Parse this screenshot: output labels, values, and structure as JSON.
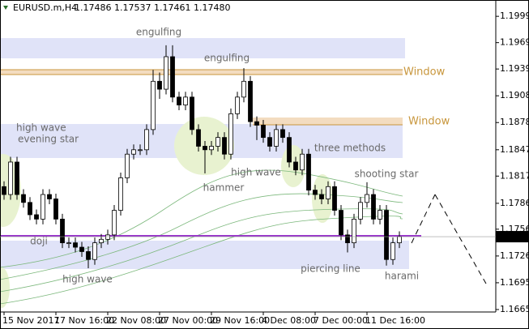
{
  "header": {
    "symbol": "EURUSD.m,H4",
    "quote": "1.17486 1.17537 1.17461 1.17480"
  },
  "chart_data": {
    "type": "candlestick",
    "open": [
      1.1805,
      1.1796,
      1.1833,
      1.1796,
      1.1787,
      1.1773,
      1.1768,
      1.1796,
      1.1791,
      1.1768,
      1.1741,
      1.1741,
      1.1736,
      1.1731,
      1.1722,
      1.1741,
      1.1745,
      1.175,
      1.1778,
      1.1815,
      1.1842,
      1.1847,
      1.1847,
      1.187,
      1.1925,
      1.1916,
      1.1953,
      1.1907,
      1.1898,
      1.1907,
      1.187,
      1.1851,
      1.1847,
      1.1851,
      1.1861,
      1.1842,
      1.1888,
      1.1907,
      1.1925,
      1.1879,
      1.1875,
      1.1861,
      1.1851,
      1.187,
      1.1861,
      1.1833,
      1.1824,
      1.1842,
      1.1801,
      1.1796,
      1.1791,
      1.1805,
      1.1778,
      1.175,
      1.1741,
      1.1768,
      1.1787,
      1.1796,
      1.1768,
      1.1778,
      1.1722,
      1.1741
    ],
    "high": [
      1.1811,
      1.1839,
      1.1839,
      1.1802,
      1.1793,
      1.1779,
      1.1802,
      1.1802,
      1.1797,
      1.1774,
      1.1747,
      1.1747,
      1.1742,
      1.1737,
      1.1747,
      1.1751,
      1.1756,
      1.1784,
      1.1821,
      1.1848,
      1.1853,
      1.1853,
      1.1876,
      1.1938,
      1.1935,
      1.1966,
      1.1966,
      1.1913,
      1.1913,
      1.1913,
      1.1876,
      1.1857,
      1.1857,
      1.1867,
      1.1867,
      1.1894,
      1.1913,
      1.194,
      1.1931,
      1.1885,
      1.1881,
      1.1867,
      1.1876,
      1.1876,
      1.1867,
      1.1839,
      1.1848,
      1.1848,
      1.1807,
      1.1802,
      1.1811,
      1.1811,
      1.1784,
      1.1756,
      1.1774,
      1.1793,
      1.181,
      1.1802,
      1.1784,
      1.1784,
      1.1747,
      1.1754
    ],
    "low": [
      1.179,
      1.179,
      1.179,
      1.1781,
      1.1767,
      1.1762,
      1.1762,
      1.1785,
      1.1762,
      1.1735,
      1.1735,
      1.173,
      1.1725,
      1.1712,
      1.1716,
      1.1735,
      1.1739,
      1.1744,
      1.1772,
      1.1809,
      1.1836,
      1.1841,
      1.1841,
      1.1864,
      1.1905,
      1.191,
      1.1901,
      1.1892,
      1.1892,
      1.1864,
      1.1845,
      1.182,
      1.1841,
      1.1845,
      1.1836,
      1.1836,
      1.1882,
      1.1901,
      1.1873,
      1.1858,
      1.1855,
      1.1845,
      1.1845,
      1.1855,
      1.1827,
      1.1818,
      1.1818,
      1.1795,
      1.179,
      1.1785,
      1.1785,
      1.1772,
      1.1744,
      1.173,
      1.1735,
      1.1762,
      1.1781,
      1.1762,
      1.1762,
      1.1715,
      1.1716,
      1.1735
    ],
    "close": [
      1.1796,
      1.1833,
      1.1796,
      1.1787,
      1.1773,
      1.1768,
      1.1796,
      1.1791,
      1.1768,
      1.1741,
      1.1741,
      1.1736,
      1.1731,
      1.1722,
      1.1741,
      1.1745,
      1.175,
      1.1778,
      1.1815,
      1.1842,
      1.1847,
      1.1847,
      1.187,
      1.1925,
      1.1916,
      1.1953,
      1.1907,
      1.1898,
      1.1907,
      1.187,
      1.1851,
      1.1847,
      1.1851,
      1.1861,
      1.1842,
      1.1888,
      1.1907,
      1.1925,
      1.1879,
      1.1875,
      1.1861,
      1.1851,
      1.187,
      1.1861,
      1.1833,
      1.1824,
      1.1842,
      1.1801,
      1.1796,
      1.1791,
      1.1805,
      1.1778,
      1.175,
      1.1741,
      1.1768,
      1.1787,
      1.1796,
      1.1768,
      1.1778,
      1.1722,
      1.1741,
      1.1748
    ],
    "up_color": "#ffffff",
    "down_color": "#000000",
    "ylim": [
      1.16622,
      1.20176
    ],
    "yticks": [
      {
        "value": 1.1999,
        "label": "1.19990"
      },
      {
        "value": 1.1969,
        "label": "1.19690"
      },
      {
        "value": 1.1939,
        "label": "1.19390"
      },
      1.19085,
      {
        "value": 1.1878,
        "label": "1.18780"
      },
      {
        "value": 1.1847,
        "label": "1.18470"
      },
      {
        "value": 1.1817,
        "label": "1.18170"
      },
      {
        "value": 1.1786,
        "label": "1.17860"
      },
      1.17565,
      {
        "value": 1.1726,
        "label": "1.17260"
      },
      1.16955,
      {
        "value": 1.1665,
        "label": "1.16650"
      }
    ],
    "xticks": [
      {
        "value": 0,
        "label": "15 Nov 2017"
      },
      {
        "value": 8,
        "label": "17 Nov 16:00"
      },
      {
        "value": 16,
        "label": "22 Nov 08:00"
      },
      {
        "value": 24,
        "label": "27 Nov 00:00"
      },
      {
        "value": 32,
        "label": "29 Nov 16:00"
      },
      {
        "value": 40,
        "label": "4 Dec 08:00"
      },
      {
        "value": 48,
        "label": "7 Dec 00:00"
      },
      {
        "value": 56,
        "label": "11 Dec 16:00"
      }
    ],
    "last_price": {
      "value": 1.1748,
      "label": "1.17480"
    },
    "annotations": [
      "engulfing",
      "engulfing",
      "Window",
      "Window",
      "high wave",
      "evening star",
      "three methods",
      "high wave",
      "hammer",
      "shooting star",
      "doji",
      "high wave",
      "piercing line",
      "harami"
    ]
  }
}
